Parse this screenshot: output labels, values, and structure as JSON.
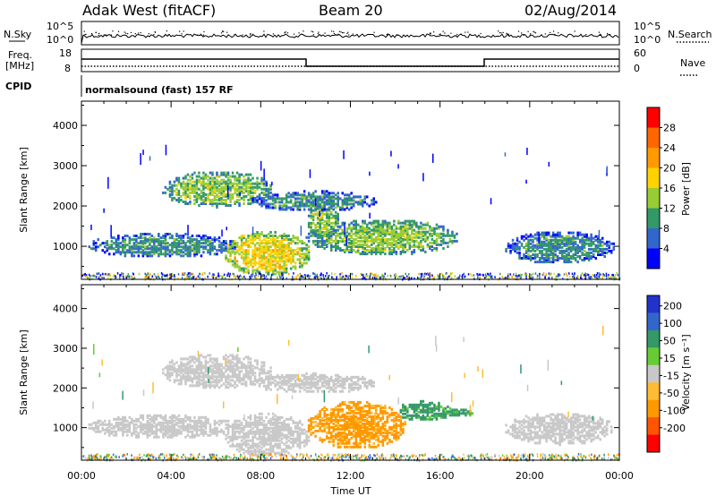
{
  "header": {
    "site": "Adak West (fitACF)",
    "beam": "Beam 20",
    "date": "02/Aug/2014"
  },
  "left_labels": {
    "nsky": "N.Sky",
    "freq_line1": "Freq.",
    "freq_line2": "[MHz]",
    "cpid": "CPID"
  },
  "right_labels": {
    "nsearch": "N.Search",
    "nave": "Nave"
  },
  "noise_panel": {
    "left_ticks": [
      "10^5",
      "10^0"
    ],
    "right_ticks": [
      "10^5",
      "10^0"
    ]
  },
  "freq_panel": {
    "left_ticks": [
      "18",
      "8"
    ],
    "right_ticks": [
      "60",
      "0"
    ]
  },
  "cpid_text": "normalsound (fast) 157 RF",
  "xaxis": {
    "label": "Time UT",
    "ticks": [
      "00:00",
      "04:00",
      "08:00",
      "12:00",
      "16:00",
      "20:00",
      "00:00"
    ]
  },
  "power_colorbar": {
    "label": "Power [dB]",
    "ticks": [
      "28",
      "24",
      "20",
      "16",
      "12",
      "8",
      "4"
    ],
    "colors": [
      "#ff0000",
      "#ff6600",
      "#ff9a00",
      "#ffd200",
      "#99cc33",
      "#339966",
      "#3366cc",
      "#0000ff"
    ]
  },
  "velocity_colorbar": {
    "label": "Velocity [m s⁻¹]",
    "ticks": [
      "200",
      "100",
      "50",
      "15",
      "-15",
      "-50",
      "-100",
      "-200"
    ],
    "colors": [
      "#2233cc",
      "#3366cc",
      "#339966",
      "#66cc33",
      "#c8c8c8",
      "#ffbb33",
      "#ff9900",
      "#ff5500",
      "#ff0000"
    ]
  },
  "chart_data": [
    {
      "type": "heatmap",
      "panel": "power",
      "ylabel": "Slant Range [km]",
      "xlabel": "Time UT",
      "xlim": [
        0,
        24
      ],
      "ylim": [
        180,
        4600
      ],
      "yticks": [
        1000,
        2000,
        3000,
        4000
      ],
      "xticks": [
        "00:00",
        "04:00",
        "08:00",
        "12:00",
        "16:00",
        "20:00",
        "00:00"
      ],
      "colorbar": {
        "label": "Power [dB]",
        "ticks": [
          4,
          8,
          12,
          16,
          20,
          24,
          28
        ]
      },
      "blobs": [
        {
          "t0": 0.2,
          "t1": 7.0,
          "r0": 750,
          "r1": 1350,
          "level": 2
        },
        {
          "t0": 3.5,
          "t1": 8.5,
          "r0": 2000,
          "r1": 2900,
          "level": 3
        },
        {
          "t0": 6.3,
          "t1": 10.2,
          "r0": 300,
          "r1": 1400,
          "level": 4
        },
        {
          "t0": 10.0,
          "t1": 16.8,
          "r0": 800,
          "r1": 1700,
          "level": 3
        },
        {
          "t0": 10.0,
          "t1": 11.5,
          "r0": 1200,
          "r1": 2100,
          "level": 3
        },
        {
          "t0": 7.5,
          "t1": 13.2,
          "r0": 1900,
          "r1": 2400,
          "level": 2
        },
        {
          "t0": 18.8,
          "t1": 23.8,
          "r0": 600,
          "r1": 1400,
          "level": 2
        }
      ]
    },
    {
      "type": "heatmap",
      "panel": "velocity",
      "ylabel": "Slant Range [km]",
      "xlabel": "Time UT",
      "xlim": [
        0,
        24
      ],
      "ylim": [
        180,
        4600
      ],
      "yticks": [
        1000,
        2000,
        3000,
        4000
      ],
      "xticks": [
        "00:00",
        "04:00",
        "08:00",
        "12:00",
        "16:00",
        "20:00",
        "00:00"
      ],
      "colorbar": {
        "label": "Velocity [m s⁻¹]",
        "ticks": [
          -200,
          -100,
          -50,
          -15,
          15,
          50,
          100,
          200
        ]
      },
      "blobs": [
        {
          "t0": 0.2,
          "t1": 7.0,
          "r0": 750,
          "r1": 1350,
          "vel": 0
        },
        {
          "t0": 3.5,
          "t1": 8.5,
          "r0": 2000,
          "r1": 2900,
          "vel": 0
        },
        {
          "t0": 6.3,
          "t1": 10.2,
          "r0": 300,
          "r1": 1400,
          "vel": 0
        },
        {
          "t0": 10.0,
          "t1": 14.5,
          "r0": 500,
          "r1": 1700,
          "vel": -60
        },
        {
          "t0": 14.0,
          "t1": 16.5,
          "r0": 1200,
          "r1": 1700,
          "vel": 40
        },
        {
          "t0": 16.0,
          "t1": 17.5,
          "r0": 1300,
          "r1": 1500,
          "vel": 40
        },
        {
          "t0": 7.5,
          "t1": 13.2,
          "r0": 1900,
          "r1": 2400,
          "vel": 0
        },
        {
          "t0": 18.8,
          "t1": 23.8,
          "r0": 600,
          "r1": 1400,
          "vel": 0
        }
      ]
    }
  ]
}
